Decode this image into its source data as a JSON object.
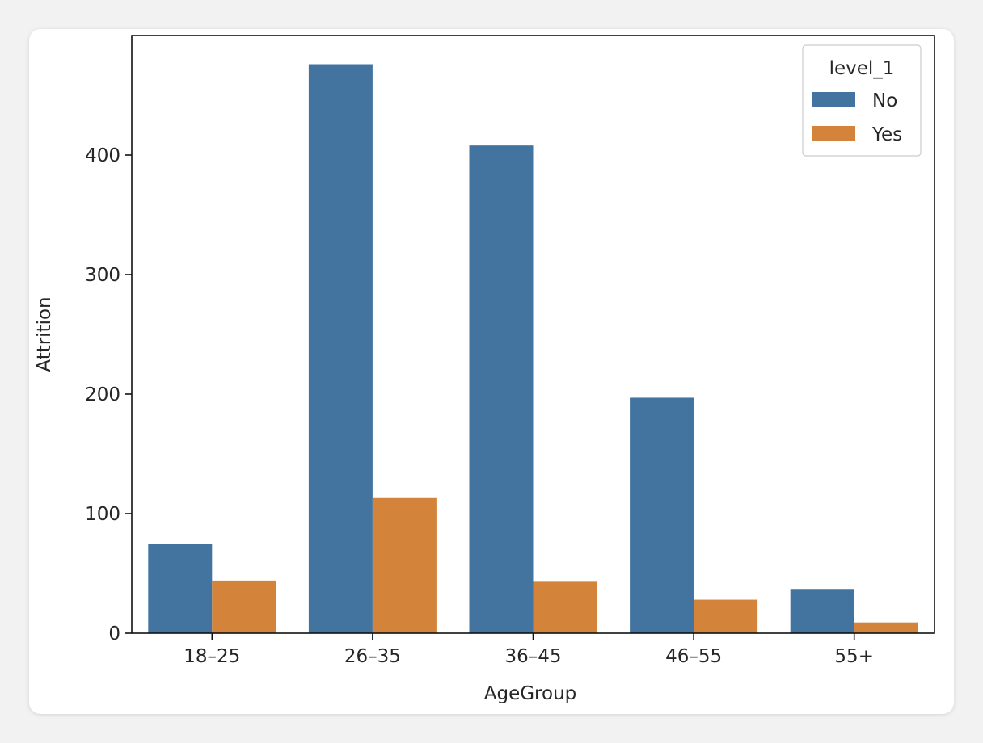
{
  "chart_data": {
    "type": "bar",
    "title": "",
    "xlabel": "AgeGroup",
    "ylabel": "Attrition",
    "categories": [
      "18-25",
      "26-35",
      "36-45",
      "46-55",
      "55+"
    ],
    "tick_labels_x": [
      "18–25",
      "26–35",
      "36–45",
      "46–55",
      "55+"
    ],
    "series": [
      {
        "name": "No",
        "values": [
          75,
          476,
          408,
          197,
          37
        ],
        "color": "#4374a0"
      },
      {
        "name": "Yes",
        "values": [
          44,
          113,
          43,
          28,
          9
        ],
        "color": "#d4843a"
      }
    ],
    "ylim": [
      0,
      500
    ],
    "yticks": [
      0,
      100,
      200,
      300,
      400
    ],
    "grid": false,
    "legend": {
      "title": "level_1",
      "position": "top-right"
    }
  }
}
